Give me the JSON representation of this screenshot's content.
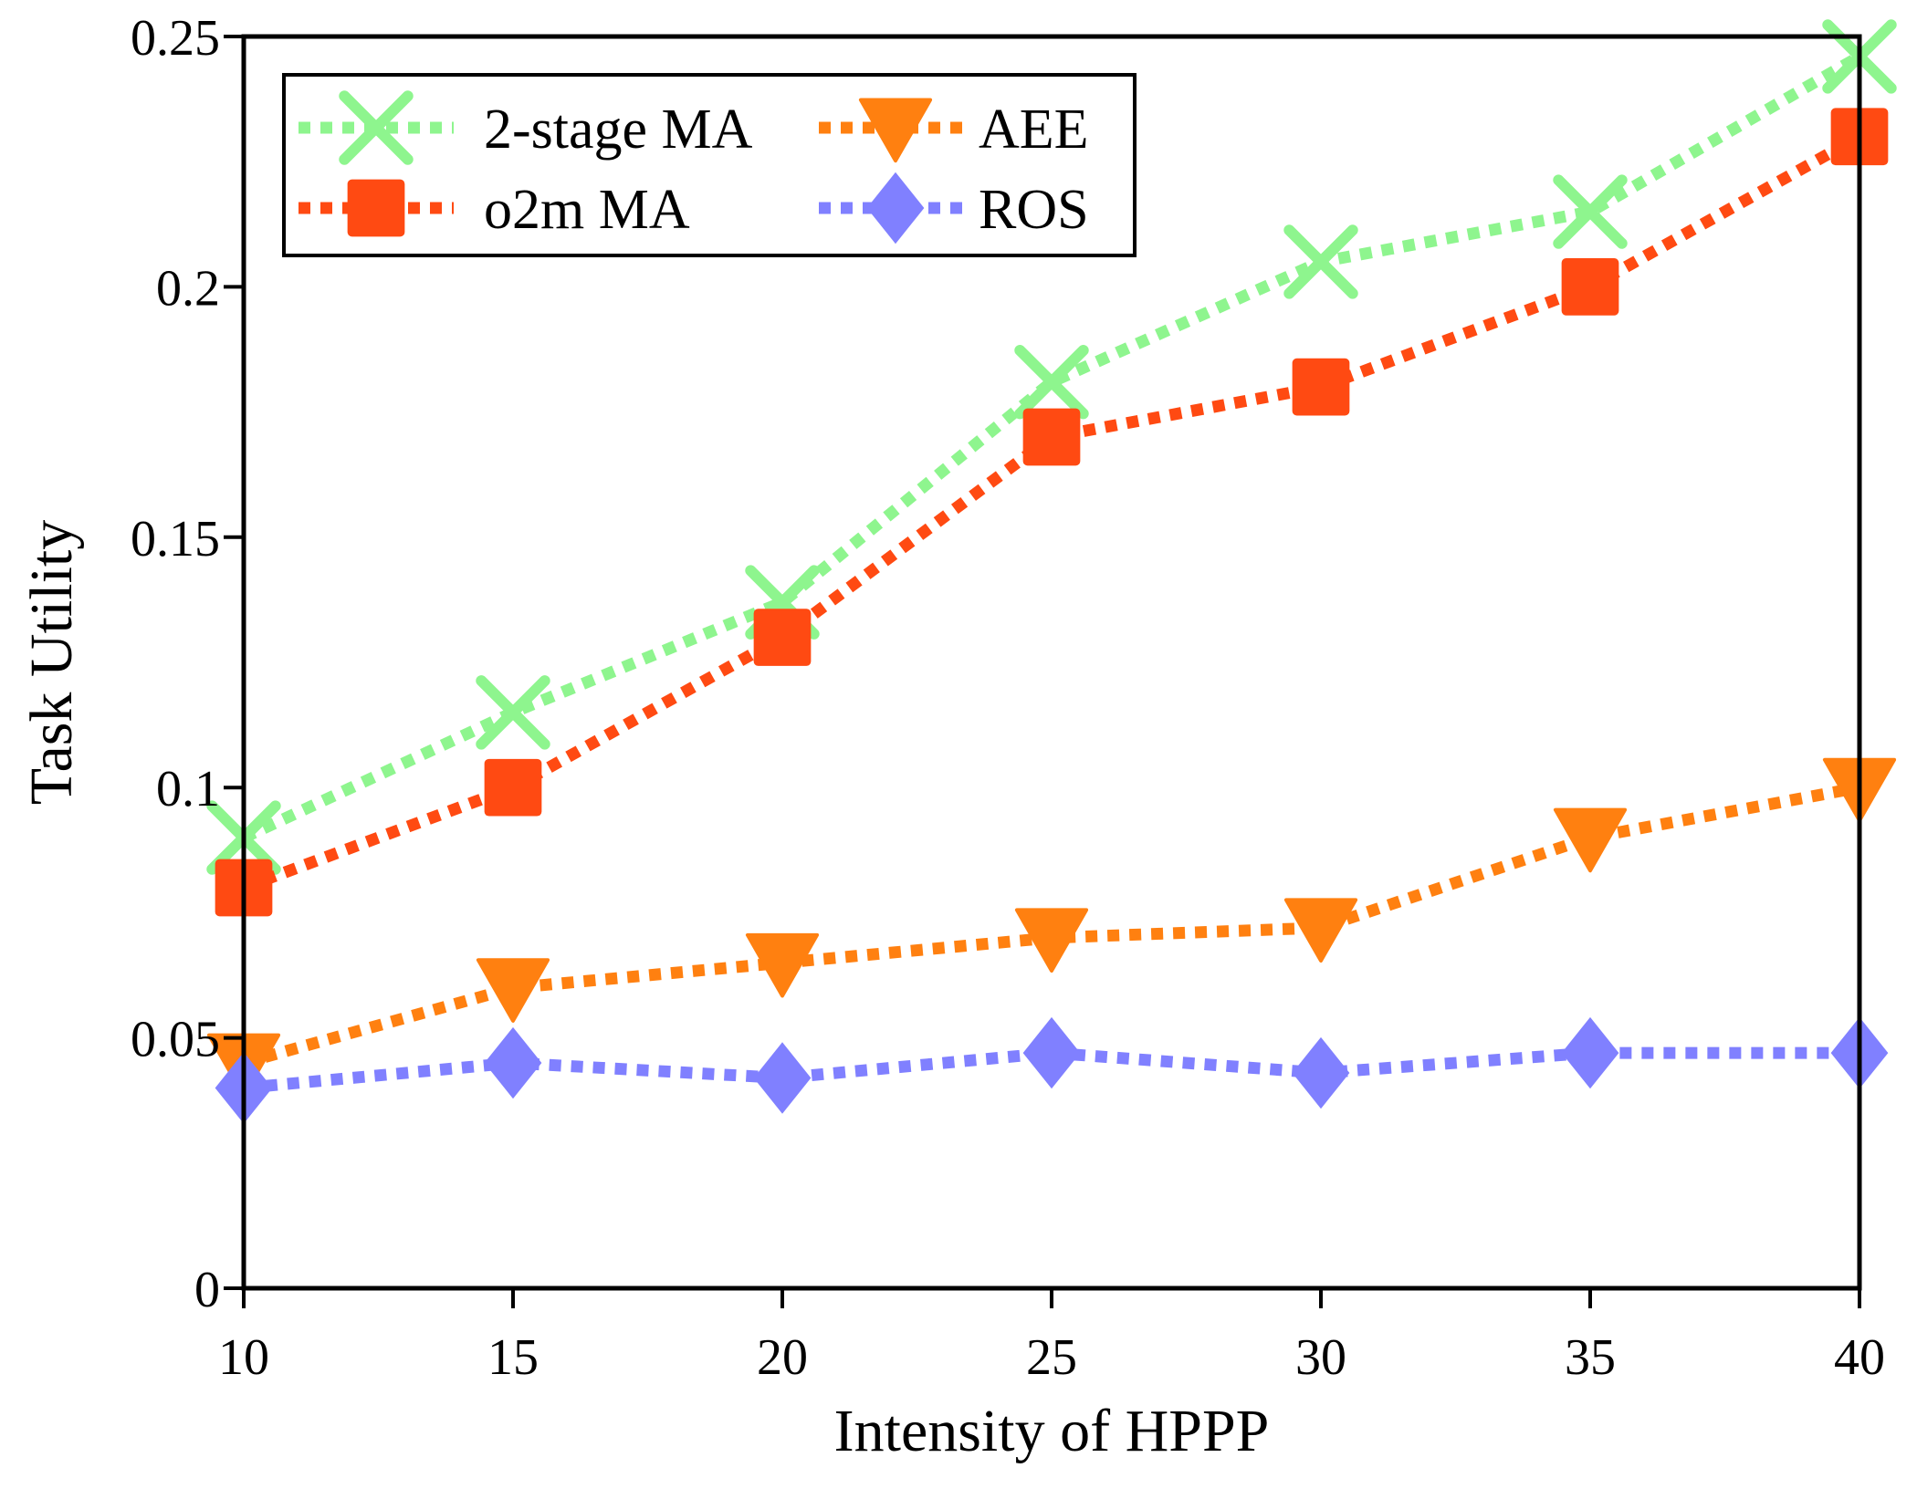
{
  "chart_data": {
    "type": "line",
    "xlabel": "Intensity of HPPP",
    "ylabel": "Task Utility",
    "x": [
      10,
      15,
      20,
      25,
      30,
      35,
      40
    ],
    "xlim": [
      10,
      40
    ],
    "ylim": [
      0,
      0.25
    ],
    "xticks": [
      "10",
      "15",
      "20",
      "25",
      "30",
      "35",
      "40"
    ],
    "yticks": [
      "0",
      "0.05",
      "0.1",
      "0.15",
      "0.2",
      "0.25"
    ],
    "grid": false,
    "legend_position": "top-left",
    "series": [
      {
        "name": "2-stage MA",
        "marker": "x",
        "color": "#8ef58e",
        "values": [
          0.09,
          0.115,
          0.137,
          0.181,
          0.205,
          0.215,
          0.246
        ]
      },
      {
        "name": "o2m MA",
        "marker": "square",
        "color": "#ff4a12",
        "values": [
          0.08,
          0.1,
          0.13,
          0.17,
          0.18,
          0.2,
          0.23
        ]
      },
      {
        "name": "AEE",
        "marker": "triangle-down",
        "color": "#ff8010",
        "values": [
          0.045,
          0.06,
          0.065,
          0.07,
          0.072,
          0.09,
          0.1
        ]
      },
      {
        "name": "ROS",
        "marker": "diamond",
        "color": "#8080ff",
        "values": [
          0.04,
          0.045,
          0.042,
          0.047,
          0.043,
          0.047,
          0.047
        ]
      }
    ]
  }
}
